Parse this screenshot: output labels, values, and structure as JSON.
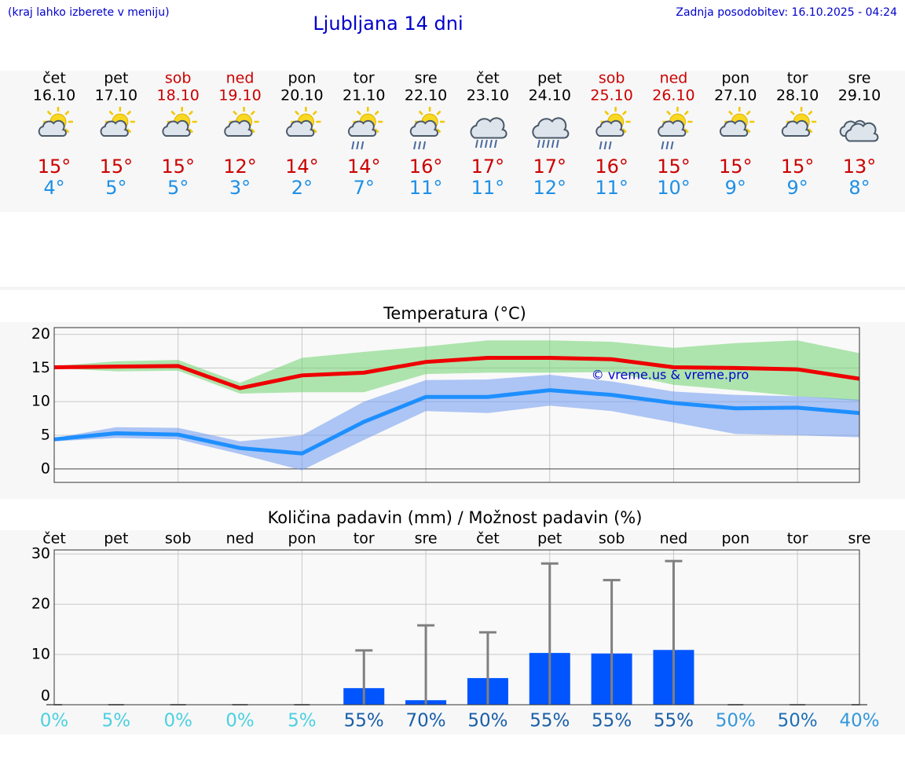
{
  "header": {
    "note": "(kraj lahko izberete v meniju)",
    "title": "Ljubljana 14 dni",
    "updated": "Zadnja posodobitev: 16.10.2025 - 04:24"
  },
  "forecast": {
    "days": [
      "čet",
      "pet",
      "sob",
      "ned",
      "pon",
      "tor",
      "sre",
      "čet",
      "pet",
      "sob",
      "ned",
      "pon",
      "tor",
      "sre"
    ],
    "name_colors": [
      "#000000",
      "#000000",
      "#cc0000",
      "#cc0000",
      "#000000",
      "#000000",
      "#000000",
      "#000000",
      "#000000",
      "#cc0000",
      "#cc0000",
      "#000000",
      "#000000",
      "#000000"
    ],
    "dates": [
      "16.10",
      "17.10",
      "18.10",
      "19.10",
      "20.10",
      "21.10",
      "22.10",
      "23.10",
      "24.10",
      "25.10",
      "26.10",
      "27.10",
      "28.10",
      "29.10"
    ],
    "icons": [
      "sun-cloud",
      "sun-cloud",
      "sun-cloud",
      "sun-cloud",
      "sun-cloud",
      "sun-cloud-rain",
      "sun-cloud-rain",
      "cloud-rain",
      "cloud-rain",
      "sun-cloud-rain",
      "sun-cloud-rain",
      "sun-cloud",
      "sun-cloud",
      "cloud"
    ],
    "high": {
      "color": "#cc0000",
      "values": [
        15,
        15,
        15,
        12,
        14,
        14,
        16,
        17,
        17,
        16,
        15,
        15,
        15,
        13
      ],
      "value_labels": [
        "15°",
        "15°",
        "15°",
        "12°",
        "14°",
        "14°",
        "16°",
        "17°",
        "17°",
        "16°",
        "15°",
        "15°",
        "15°",
        "13°"
      ]
    },
    "low": {
      "color": "#1e8fe6",
      "values": [
        4,
        5,
        5,
        3,
        2,
        7,
        11,
        11,
        12,
        11,
        10,
        9,
        9,
        8
      ],
      "value_labels": [
        "4°",
        "5°",
        "5°",
        "3°",
        "2°",
        "7°",
        "11°",
        "11°",
        "12°",
        "11°",
        "10°",
        "9°",
        "9°",
        "8°"
      ]
    }
  },
  "chart_data": [
    {
      "type": "line",
      "title": "Temperatura (°C)",
      "ylim": [
        -2,
        21
      ],
      "yticks": [
        0,
        5,
        10,
        15,
        20
      ],
      "grid": true,
      "annotation": "© vreme.us & vreme.pro",
      "bands": [
        {
          "color": "#6fd46f",
          "upper": [
            15.3,
            16,
            16.2,
            12.8,
            16.5,
            17.4,
            18.2,
            19.1,
            19.1,
            18.9,
            18,
            18.7,
            19.1,
            17.2
          ],
          "lower": [
            15,
            14.5,
            14.6,
            11.2,
            11.4,
            11.4,
            14.1,
            14.3,
            14.3,
            14.4,
            12.5,
            11.7,
            10.8,
            10.1
          ]
        },
        {
          "color": "#6f9af0",
          "upper": [
            4.6,
            6.2,
            6.1,
            4.1,
            5,
            10,
            13.2,
            13.3,
            14,
            13,
            11.5,
            11,
            10.8,
            10.3
          ],
          "lower": [
            4.1,
            4.6,
            4.4,
            2.2,
            -0.2,
            4.3,
            8.6,
            8.3,
            9.4,
            8.6,
            6.9,
            5.2,
            5,
            4.7
          ]
        }
      ],
      "series": [
        {
          "color": "#ee0000",
          "values": [
            15.1,
            15.2,
            15.3,
            12,
            13.9,
            14.3,
            15.9,
            16.5,
            16.5,
            16.3,
            15.1,
            15,
            14.8,
            13.4
          ]
        },
        {
          "color": "#1e8fff",
          "values": [
            4.4,
            5.3,
            5.1,
            3.1,
            2.3,
            7,
            10.7,
            10.7,
            11.7,
            11,
            9.8,
            9,
            9.1,
            8.3
          ]
        }
      ]
    },
    {
      "type": "bar",
      "title": "Količina padavin (mm) / Možnost padavin (%)",
      "ylim": [
        0,
        30.8
      ],
      "yticks": [
        0,
        10,
        20,
        30
      ],
      "grid": true,
      "color": "#0055ff",
      "error_color": "#808080",
      "values": [
        0,
        0,
        0,
        0,
        0,
        3.3,
        0.9,
        5.3,
        10.3,
        10.2,
        10.9,
        0,
        0,
        0
      ],
      "error_high": [
        0,
        0,
        0,
        0,
        0,
        10.8,
        15.8,
        14.4,
        28.1,
        24.8,
        28.6,
        0,
        0,
        0
      ],
      "probability": {
        "values": [
          0,
          5,
          0,
          0,
          5,
          55,
          70,
          50,
          55,
          55,
          55,
          50,
          50,
          40
        ],
        "value_labels": [
          "0%",
          "5%",
          "0%",
          "0%",
          "5%",
          "55%",
          "70%",
          "50%",
          "55%",
          "55%",
          "55%",
          "50%",
          "50%",
          "40%"
        ],
        "colors": [
          "#4dd0e1",
          "#4dd0e1",
          "#4dd0e1",
          "#4dd0e1",
          "#4dd0e1",
          "#1a5fa8",
          "#1a5fa8",
          "#1a5fa8",
          "#1a5fa8",
          "#1a5fa8",
          "#1a5fa8",
          "#3498db",
          "#1f6fb5",
          "#3498db"
        ]
      }
    }
  ]
}
